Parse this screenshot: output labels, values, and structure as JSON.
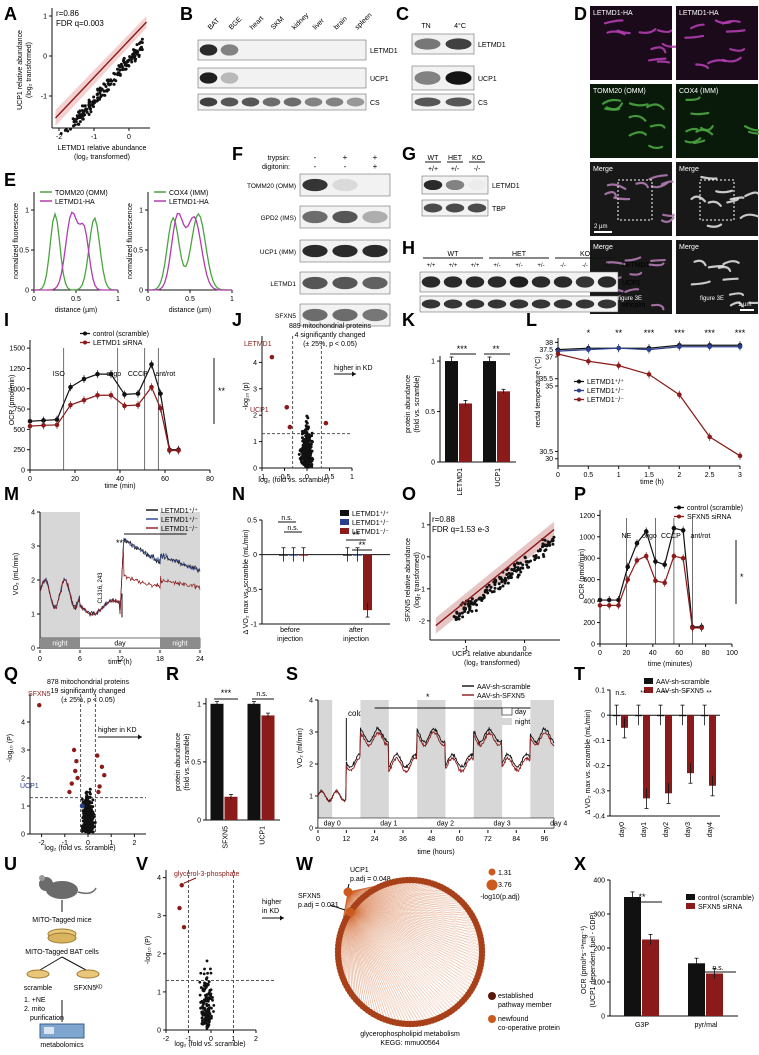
{
  "panel_letters": [
    "A",
    "B",
    "C",
    "D",
    "E",
    "F",
    "G",
    "H",
    "I",
    "J",
    "K",
    "L",
    "M",
    "N",
    "O",
    "P",
    "Q",
    "R",
    "S",
    "T",
    "U",
    "V",
    "W",
    "X"
  ],
  "colors": {
    "red": "#8b1a1a",
    "blue": "#2b3f8f",
    "green": "#4aa53f",
    "magenta": "#b13cb0",
    "orange": "#cc5a1e",
    "black": "#111111"
  },
  "panelA": {
    "stat1": "r=0.86",
    "stat2": "FDR q=0.003",
    "ylabel1": "UCP1 relative abundance",
    "ylabel2": "(log₂ transformed)",
    "xlabel1": "LETMD1 relative abundance",
    "xlabel2": "(log₂ transformed)"
  },
  "panelB": {
    "lanes": [
      "BAT",
      "BGE",
      "heart",
      "SKM",
      "kidney",
      "liver",
      "brain",
      "spleen"
    ],
    "blots": [
      "LETMD1",
      "UCP1",
      "CS"
    ]
  },
  "panelC": {
    "lanes": [
      "TN",
      "4°C"
    ],
    "blots": [
      "LETMD1",
      "UCP1",
      "CS"
    ]
  },
  "panelD": {
    "labels": [
      "LETMD1-HA",
      "LETMD1-HA",
      "TOMM20 (OMM)",
      "COX4 (IMM)",
      "Merge",
      "Merge",
      "Merge",
      "Merge"
    ],
    "scale1": "2 µm",
    "scale2": "1 µm",
    "fig1": "figure 3E",
    "fig2": "figure 3E"
  },
  "panelE": {
    "legend1": [
      "TOMM20 (OMM)",
      "LETMD1-HA"
    ],
    "legend2": [
      "COX4 (IMM)",
      "LETMD1-HA"
    ],
    "ylabel": "normalized fluorescence",
    "xlabel": "distance (µm)"
  },
  "panelF": {
    "row1": "trypsin:",
    "row2": "digitonin:",
    "trypsin": [
      "-",
      "+",
      "+"
    ],
    "digitonin": [
      "-",
      "-",
      "+"
    ],
    "blots": [
      "TOMM20 (OMM)",
      "GPD2 (IMS)",
      "UCP1 (IMM)",
      "LETMD1",
      "SFXN5"
    ]
  },
  "panelG": {
    "groups": [
      "WT",
      "HET",
      "KO"
    ],
    "geno": [
      "+/+",
      "+/-",
      "-/-"
    ],
    "blots": [
      "LETMD1",
      "TBP"
    ]
  },
  "panelH": {
    "groups": [
      "WT",
      "HET",
      "KO"
    ],
    "geno": [
      "+/+",
      "+/+",
      "+/+",
      "+/-",
      "+/-",
      "+/-",
      "-/-",
      "-/-",
      "-/-"
    ],
    "blots": [
      "LETMD1",
      "UCP1",
      "vinculin"
    ]
  },
  "panelI": {
    "legend": [
      "control (scramble)",
      "LETMD1 siRNA"
    ],
    "events": [
      "ISO",
      "oligo",
      "CCCP",
      "ant/rot"
    ],
    "ylabel": "OCR (pmol/min)",
    "xlabel": "time (min)",
    "sig": "**"
  },
  "panelJ": {
    "t1": "889 mitochondrial proteins",
    "t2": "4 significantly changed",
    "t3": "(± 25%, p < 0.05)",
    "higher": "higher in KD",
    "lab1": "LETMD1",
    "lab2": "UCP1",
    "ylabel": "-log₁₀ (p)",
    "xlabel": "log₂ (fold vs. scramble)"
  },
  "panelK": {
    "ylabel1": "protein abundance",
    "ylabel2": "(fold vs. scramble)",
    "sig": [
      "***",
      "**"
    ]
  },
  "panelL": {
    "legend": [
      "LETMD1⁺/⁺",
      "LETMD1⁺/⁻",
      "LETMD1⁻/⁻"
    ],
    "sig": [
      "*",
      "**",
      "***",
      "***",
      "***",
      "***"
    ],
    "ylabel": "rectal temperature (°C)",
    "xlabel": "time (h)"
  },
  "panelM": {
    "legend": [
      "LETMD1⁺/⁺",
      "LETMD1⁺/⁻",
      "LETMD1⁻/⁻"
    ],
    "inj": "CL316, 243",
    "sig": "***",
    "periods": [
      "night",
      "day",
      "night"
    ],
    "ylabel": "VO₂ (mL/min)",
    "xlabel": "time (h)"
  },
  "panelN": {
    "legend": [
      "LETMD1⁺/⁺",
      "LETMD1⁺/⁻",
      "LETMD1⁻/⁻"
    ],
    "ns": [
      "n.s.",
      "n.s."
    ],
    "sig": [
      "**",
      "**"
    ],
    "ylabel": "Δ VO₂ max vs. scramble (mL/min)",
    "cat1": [
      "before",
      "injection"
    ],
    "cat2": [
      "after",
      "injection"
    ]
  },
  "panelO": {
    "stat1": "r=0.88",
    "stat2": "FDR q=1.53 e-3",
    "ylabel1": "SFXN5 relative abundance",
    "ylabel2": "(log₂ transformed)",
    "xlabel1": "UCP1 relative abundance",
    "xlabel2": "(log₂ transformed)"
  },
  "panelP": {
    "legend": [
      "control (scramble)",
      "SFXN5 siRNA"
    ],
    "events": [
      "NE",
      "oligo",
      "CCCP",
      "ant/rot"
    ],
    "ylabel": "OCR (pmol/min)",
    "xlabel": "time (minutes)",
    "sig": "*"
  },
  "panelQ": {
    "t1": "878 mitochondrial proteins",
    "t2": "19 significantly changed",
    "t3": "(± 25%, p < 0.05)",
    "higher": "higher in KD",
    "lab1": "SFXN5",
    "lab2": "UCP1",
    "ylabel": "-log₁₀ (P)",
    "xlabel": "log₂ (fold vs. scramble)"
  },
  "panelR": {
    "ylabel1": "protein abundance",
    "ylabel2": "(fold vs. scramble)",
    "sig": [
      "***",
      "n.s."
    ]
  },
  "panelS": {
    "legend": [
      "AAV-sh-scramble",
      "AAV-sh-SFXN5"
    ],
    "legend2": [
      "day",
      "night"
    ],
    "cold": "cold",
    "sig": "*",
    "days": [
      "day 0",
      "day 1",
      "day 2",
      "day 3",
      "day 4"
    ],
    "ylabel": "VO₂ (ml/min)",
    "xlabel": "time (hours)"
  },
  "panelT": {
    "legend": [
      "AAV-sh-scramble",
      "AAV-sh-SFXN5"
    ],
    "sig": [
      "n.s.",
      "**",
      "**",
      "*",
      "**"
    ],
    "ylabel": "Δ VO₂ max vs. scramble (mL/min)"
  },
  "panelU": {
    "steps": [
      "MITO-Tagged mice",
      "MITO-Tagged BAT cells",
      "scramble",
      "SFXN5ᴷᴰ",
      "1. +NE",
      "2. mito",
      "purification",
      "metabolomics"
    ]
  },
  "panelV": {
    "lab": "glycerol-3-phosphate",
    "higher": [
      "higher",
      "in KD"
    ],
    "ylabel": "-log₁₀ (P)",
    "xlabel": "log₂ (fold vs. scramble)"
  },
  "panelW": {
    "ucp1": [
      "UCP1",
      "p.adj = 0.048"
    ],
    "sfxn5": [
      "SFXN5",
      "p.adj = 0.031"
    ],
    "size1": "1.31",
    "size2": "3.76",
    "sizeLabel": "-log10(p.adj)",
    "leg1": [
      "established",
      "pathway member"
    ],
    "leg2": [
      "newfound",
      "co-operative protein"
    ],
    "title": [
      "glycerophospholipid metabolism",
      "KEGG: mmu00564"
    ]
  },
  "panelX": {
    "legend": [
      "control (scramble)",
      "SFXN5 siRNA"
    ],
    "sig": [
      "**",
      "n.s."
    ],
    "ylabel1": "OCR (pmol*s⁻¹*mg⁻¹)",
    "ylabel2": "(UCP1 dependent, fuel - GDP)"
  },
  "chart_data": [
    {
      "panel": "A",
      "type": "scatter",
      "xlim": [
        -2.2,
        0.6
      ],
      "ylim": [
        -1.8,
        1.2
      ],
      "xticks": [
        -2,
        -1,
        0
      ],
      "yticks": [
        -1,
        0,
        1
      ],
      "trend": [
        [
          -2.1,
          -1.55
        ],
        [
          0.5,
          0.85
        ]
      ],
      "points_note": "approx. 180 proteins; positive correlation"
    },
    {
      "panel": "I",
      "type": "line",
      "x": [
        0,
        6,
        12,
        18,
        24,
        30,
        36,
        42,
        48,
        54,
        58,
        62,
        66
      ],
      "series": [
        {
          "name": "control (scramble)",
          "values": [
            600,
            610,
            620,
            1020,
            1120,
            1180,
            1180,
            930,
            940,
            1300,
            940,
            250,
            250
          ]
        },
        {
          "name": "LETMD1 siRNA",
          "values": [
            540,
            550,
            555,
            800,
            860,
            920,
            920,
            790,
            800,
            1020,
            760,
            240,
            240
          ]
        }
      ],
      "xlim": [
        0,
        80
      ],
      "ylim": [
        0,
        1600
      ],
      "xticks": [
        0,
        20,
        40,
        60,
        80
      ],
      "yticks": [
        0,
        250,
        500,
        750,
        1000,
        1250,
        1500
      ]
    },
    {
      "panel": "K",
      "type": "bar",
      "categories": [
        "LETMD1",
        "UCP1"
      ],
      "series": [
        {
          "name": "control (scramble)",
          "values": [
            1.0,
            1.0
          ],
          "err": [
            0.04,
            0.04
          ]
        },
        {
          "name": "LETMD1 siRNA",
          "values": [
            0.58,
            0.7
          ],
          "err": [
            0.03,
            0.02
          ]
        }
      ],
      "ylim": [
        0,
        1.05
      ],
      "yticks": [
        0,
        0.5,
        1.0
      ]
    },
    {
      "panel": "L",
      "type": "line",
      "x": [
        0,
        0.5,
        1,
        1.5,
        2,
        2.5,
        3
      ],
      "series": [
        {
          "name": "LETMD1⁺/⁺",
          "values": [
            37.5,
            37.6,
            37.6,
            37.6,
            37.8,
            37.8,
            37.8
          ]
        },
        {
          "name": "LETMD1⁺/⁻",
          "values": [
            37.4,
            37.5,
            37.6,
            37.5,
            37.7,
            37.7,
            37.7
          ]
        },
        {
          "name": "LETMD1⁻/⁻",
          "values": [
            37.2,
            36.7,
            36.4,
            35.8,
            34.4,
            31.5,
            30.2
          ]
        }
      ],
      "xlim": [
        0,
        3
      ],
      "ylim": [
        29.5,
        38.3
      ],
      "xticks": [
        0,
        0.5,
        1,
        1.5,
        2,
        2.5,
        3
      ],
      "yticks": [
        30,
        30.5,
        35,
        35.5,
        37,
        37.5,
        38
      ]
    },
    {
      "panel": "M",
      "type": "line",
      "xlim": [
        0,
        24
      ],
      "ylim": [
        0,
        4
      ],
      "xticks": [
        0,
        6,
        12,
        18,
        24
      ],
      "yticks": [
        0,
        1,
        2,
        3,
        4
      ],
      "series": [
        {
          "name": "LETMD1⁺/⁺"
        },
        {
          "name": "LETMD1⁺/⁻"
        },
        {
          "name": "LETMD1⁻/⁻"
        }
      ]
    },
    {
      "panel": "N",
      "type": "bar",
      "categories": [
        "before injection",
        "after injection"
      ],
      "series": [
        {
          "name": "LETMD1⁺/⁺",
          "values": [
            0,
            0
          ]
        },
        {
          "name": "LETMD1⁺/⁻",
          "values": [
            0,
            0
          ]
        },
        {
          "name": "LETMD1⁻/⁻",
          "values": [
            0,
            -0.8
          ]
        }
      ],
      "ylim": [
        -1.0,
        0.5
      ],
      "yticks": [
        -1.0,
        -0.5,
        0.0,
        0.5
      ]
    },
    {
      "panel": "O",
      "type": "scatter",
      "xlim": [
        -1.6,
        0.6
      ],
      "ylim": [
        -2.6,
        1.4
      ],
      "xticks": [
        -1,
        0
      ],
      "yticks": [
        -2,
        -1,
        0,
        1
      ]
    },
    {
      "panel": "P",
      "type": "line",
      "x": [
        0,
        7,
        14,
        21,
        28,
        35,
        42,
        49,
        56,
        63,
        70,
        77
      ],
      "series": [
        {
          "name": "control (scramble)",
          "values": [
            410,
            410,
            410,
            720,
            940,
            1050,
            770,
            740,
            1080,
            1060,
            160,
            160
          ]
        },
        {
          "name": "SFXN5 siRNA",
          "values": [
            360,
            360,
            360,
            600,
            780,
            820,
            590,
            570,
            820,
            800,
            150,
            150
          ]
        }
      ],
      "xlim": [
        0,
        100
      ],
      "ylim": [
        0,
        1250
      ],
      "xticks": [
        0,
        20,
        40,
        60,
        80,
        100
      ],
      "yticks": [
        0,
        200,
        400,
        600,
        800,
        1000,
        1200
      ]
    },
    {
      "panel": "R",
      "type": "bar",
      "categories": [
        "SFXN5",
        "UCP1"
      ],
      "series": [
        {
          "name": "control (scramble)",
          "values": [
            1.0,
            1.0
          ]
        },
        {
          "name": "SFXN5 siRNA",
          "values": [
            0.2,
            0.9
          ]
        }
      ],
      "ylim": [
        0,
        1.05
      ],
      "yticks": [
        0,
        0.5,
        1.0
      ]
    },
    {
      "panel": "T",
      "type": "bar",
      "categories": [
        "day0",
        "day1",
        "day2",
        "day3",
        "day4"
      ],
      "series": [
        {
          "name": "AAV-sh-scramble",
          "values": [
            0,
            0,
            0,
            0,
            0
          ]
        },
        {
          "name": "AAV-sh-SFXN5",
          "values": [
            -0.05,
            -0.33,
            -0.31,
            -0.23,
            -0.28
          ]
        }
      ],
      "ylim": [
        -0.4,
        0.1
      ],
      "yticks": [
        -0.4,
        -0.3,
        -0.2,
        -0.1,
        0.0,
        0.1
      ]
    },
    {
      "panel": "X",
      "type": "bar",
      "categories": [
        "G3P",
        "pyr/mal"
      ],
      "series": [
        {
          "name": "control (scramble)",
          "values": [
            350,
            155
          ]
        },
        {
          "name": "SFXN5 siRNA",
          "values": [
            225,
            125
          ]
        }
      ],
      "ylim": [
        0,
        400
      ],
      "yticks": [
        0,
        100,
        200,
        300,
        400
      ]
    }
  ]
}
